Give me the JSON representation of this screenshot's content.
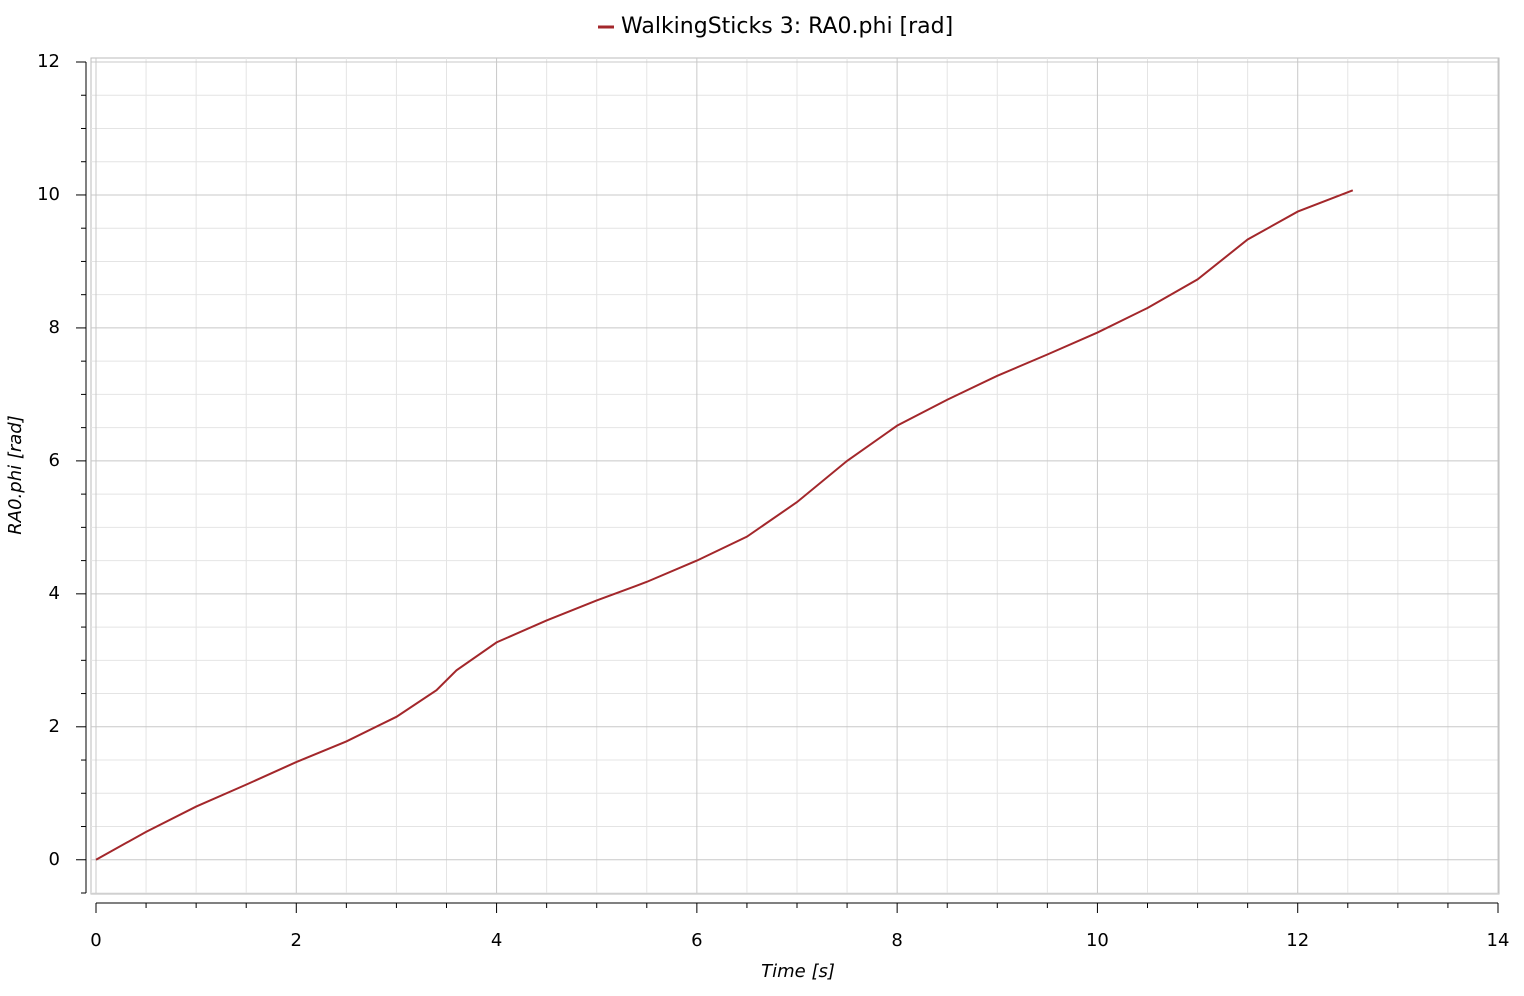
{
  "chart_data": {
    "type": "line",
    "x_label": "Time [s]",
    "y_label": "RA0.phi [rad]",
    "x": [
      0,
      0.5,
      1,
      1.5,
      2,
      2.5,
      3,
      3.4,
      3.6,
      4,
      4.5,
      5,
      5.5,
      6,
      6.5,
      7,
      7.5,
      8,
      8.5,
      9,
      9.5,
      10,
      10.5,
      11,
      11.5,
      12,
      12.55
    ],
    "series": [
      {
        "name": "WalkingSticks 3: RA0.phi [rad]",
        "color": "#a3272b",
        "values": [
          0,
          0.42,
          0.8,
          1.13,
          1.47,
          1.78,
          2.15,
          2.55,
          2.85,
          3.27,
          3.6,
          3.9,
          4.18,
          4.5,
          4.86,
          5.38,
          6.0,
          6.53,
          6.92,
          7.28,
          7.6,
          7.93,
          8.3,
          8.73,
          9.33,
          9.75,
          10.07
        ]
      }
    ],
    "xlim": [
      0,
      14
    ],
    "ylim": [
      -0.5,
      12
    ],
    "xticks": [
      0,
      2,
      4,
      6,
      8,
      10,
      12,
      14
    ],
    "yticks": [
      0,
      2,
      4,
      6,
      8,
      10,
      12
    ],
    "xminorticks": [
      0.5,
      1,
      1.5,
      2.5,
      3,
      3.5,
      4.5,
      5,
      5.5,
      6.5,
      7,
      7.5,
      8.5,
      9,
      9.5,
      10.5,
      11,
      11.5,
      12.5,
      13,
      13.5
    ],
    "yminorticks": [
      -0.5,
      0.5,
      1,
      1.5,
      2.5,
      3,
      3.5,
      4.5,
      5,
      5.5,
      6.5,
      7,
      7.5,
      8.5,
      9,
      9.5,
      10.5,
      11,
      11.5
    ],
    "grid": true,
    "legend": "top"
  }
}
